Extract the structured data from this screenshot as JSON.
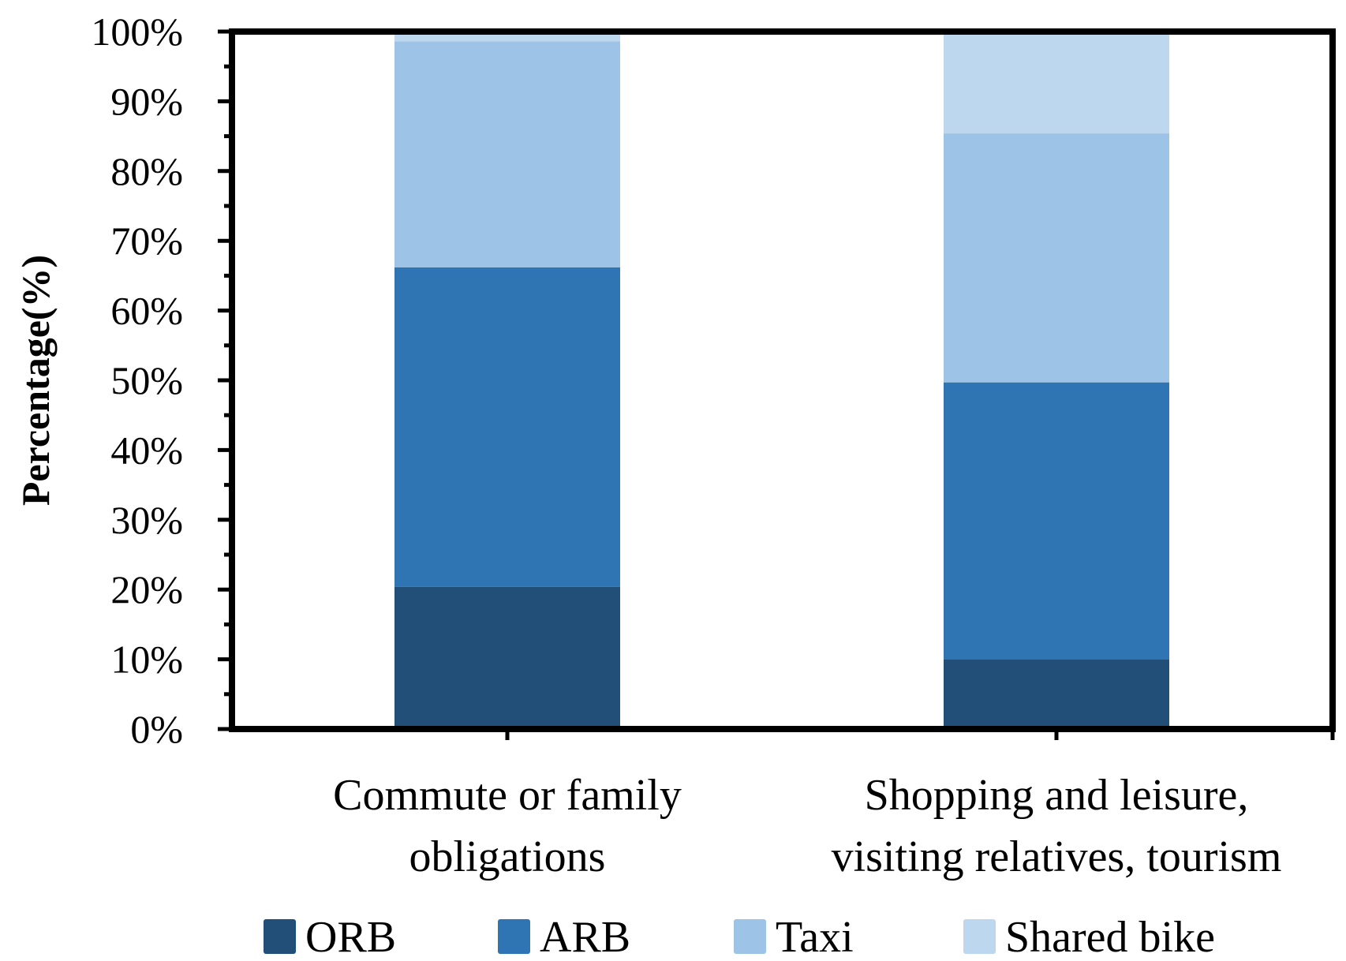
{
  "chart_data": {
    "type": "bar",
    "stacked": true,
    "title": "",
    "xlabel": "",
    "ylabel": "Percentage(%)",
    "ylim": [
      0,
      100
    ],
    "yticks": [
      "0%",
      "10%",
      "20%",
      "30%",
      "40%",
      "50%",
      "60%",
      "70%",
      "80%",
      "90%",
      "100%"
    ],
    "categories": [
      [
        "Commute or family",
        "obligations"
      ],
      [
        "Shopping and leisure,",
        "visiting relatives, tourism"
      ]
    ],
    "series": [
      {
        "name": "ORB",
        "color": "#214F78",
        "values": [
          20.4,
          10.0
        ]
      },
      {
        "name": "ARB",
        "color": "#2F74B3",
        "values": [
          45.8,
          39.7
        ]
      },
      {
        "name": "Taxi",
        "color": "#9DC3E6",
        "values": [
          32.4,
          35.7
        ]
      },
      {
        "name": "Shared bike",
        "color": "#BDD7EE",
        "values": [
          1.4,
          14.6
        ]
      }
    ],
    "grid": false,
    "legend": "bottom"
  }
}
